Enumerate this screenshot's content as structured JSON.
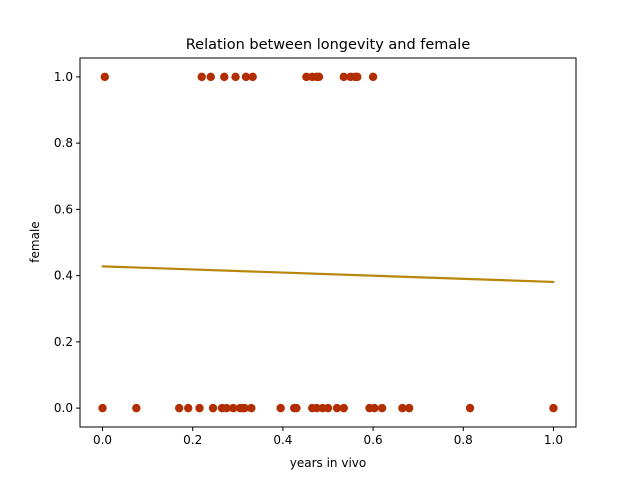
{
  "chart_data": {
    "type": "scatter",
    "title": "Relation between longevity and female",
    "xlabel": "years in vivo",
    "ylabel": "female",
    "xlim": [
      -0.05,
      1.05
    ],
    "ylim": [
      -0.057,
      1.057
    ],
    "xticks": [
      0.0,
      0.2,
      0.4,
      0.6,
      0.8,
      1.0
    ],
    "xtick_labels": [
      "0.0",
      "0.2",
      "0.4",
      "0.6",
      "0.8",
      "1.0"
    ],
    "yticks": [
      0.0,
      0.2,
      0.4,
      0.6,
      0.8,
      1.0
    ],
    "ytick_labels": [
      "0.0",
      "0.2",
      "0.4",
      "0.6",
      "0.8",
      "1.0"
    ],
    "grid": false,
    "series": [
      {
        "kind": "scatter",
        "color": "#b22d00",
        "x": [
          0.005,
          0.22,
          0.24,
          0.27,
          0.295,
          0.318,
          0.333,
          0.452,
          0.465,
          0.475,
          0.48,
          0.535,
          0.55,
          0.56,
          0.565,
          0.6,
          0.0,
          0.075,
          0.17,
          0.19,
          0.215,
          0.245,
          0.265,
          0.275,
          0.29,
          0.305,
          0.31,
          0.315,
          0.33,
          0.395,
          0.425,
          0.43,
          0.465,
          0.475,
          0.488,
          0.5,
          0.52,
          0.535,
          0.592,
          0.603,
          0.62,
          0.665,
          0.68,
          0.815,
          1.0
        ],
        "y": [
          1,
          1,
          1,
          1,
          1,
          1,
          1,
          1,
          1,
          1,
          1,
          1,
          1,
          1,
          1,
          1,
          0,
          0,
          0,
          0,
          0,
          0,
          0,
          0,
          0,
          0,
          0,
          0,
          0,
          0,
          0,
          0,
          0,
          0,
          0,
          0,
          0,
          0,
          0,
          0,
          0,
          0,
          0,
          0,
          0
        ]
      },
      {
        "kind": "line",
        "color": "#b8860b",
        "x": [
          0.0,
          1.0
        ],
        "y": [
          0.428,
          0.381
        ]
      }
    ]
  }
}
